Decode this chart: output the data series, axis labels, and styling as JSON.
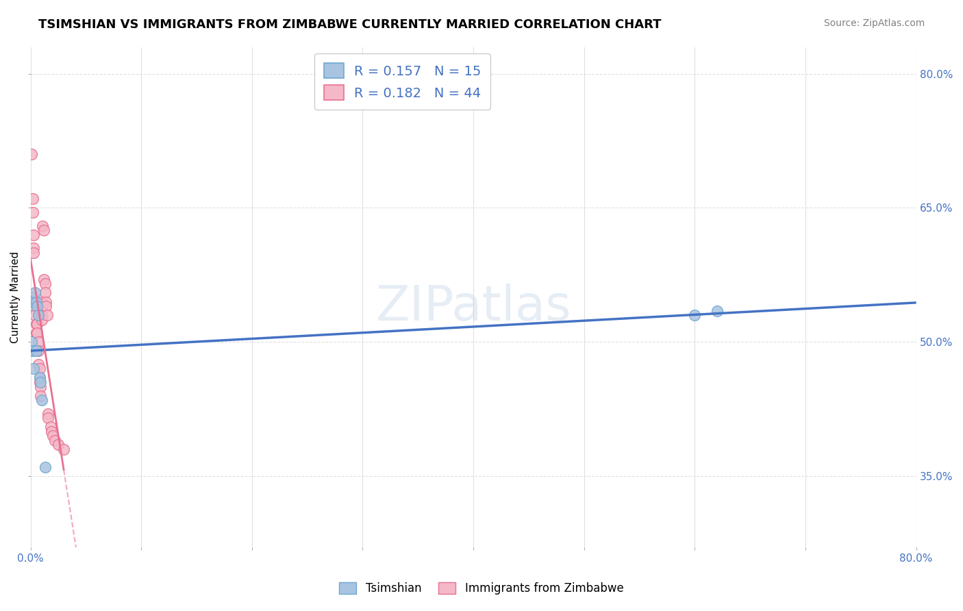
{
  "title": "TSIMSHIAN VS IMMIGRANTS FROM ZIMBABWE CURRENTLY MARRIED CORRELATION CHART",
  "source": "Source: ZipAtlas.com",
  "ylabel_label": "Currently Married",
  "xlim": [
    0.0,
    0.8
  ],
  "ylim": [
    0.27,
    0.83
  ],
  "watermark": "ZIPatlas",
  "tsimshian_x": [
    0.001,
    0.002,
    0.003,
    0.004,
    0.005,
    0.006,
    0.007,
    0.008,
    0.009,
    0.01,
    0.013,
    0.6,
    0.62,
    0.005,
    0.003
  ],
  "tsimshian_y": [
    0.5,
    0.49,
    0.545,
    0.555,
    0.545,
    0.54,
    0.53,
    0.46,
    0.455,
    0.435,
    0.36,
    0.53,
    0.535,
    0.49,
    0.47
  ],
  "zimbabwe_x": [
    0.001,
    0.001,
    0.002,
    0.002,
    0.002,
    0.003,
    0.003,
    0.003,
    0.003,
    0.004,
    0.004,
    0.004,
    0.005,
    0.005,
    0.006,
    0.006,
    0.007,
    0.007,
    0.007,
    0.008,
    0.008,
    0.008,
    0.009,
    0.009,
    0.01,
    0.01,
    0.01,
    0.01,
    0.011,
    0.012,
    0.012,
    0.013,
    0.013,
    0.014,
    0.014,
    0.015,
    0.016,
    0.016,
    0.018,
    0.019,
    0.02,
    0.022,
    0.025,
    0.03
  ],
  "zimbabwe_y": [
    0.71,
    0.49,
    0.66,
    0.645,
    0.55,
    0.62,
    0.605,
    0.6,
    0.545,
    0.545,
    0.54,
    0.53,
    0.52,
    0.51,
    0.52,
    0.51,
    0.5,
    0.49,
    0.475,
    0.47,
    0.46,
    0.455,
    0.45,
    0.44,
    0.545,
    0.54,
    0.53,
    0.525,
    0.63,
    0.625,
    0.57,
    0.565,
    0.555,
    0.545,
    0.54,
    0.53,
    0.42,
    0.415,
    0.405,
    0.4,
    0.395,
    0.39,
    0.385,
    0.38
  ],
  "tsimshian_color": "#a8c4e0",
  "tsimshian_edge": "#6fa8d0",
  "tsimshian_line_color": "#4472c4",
  "zimbabwe_color": "#f4b8c8",
  "zimbabwe_edge": "#e87090",
  "zimbabwe_line_color": "#e07090",
  "tsimshian_R": 0.157,
  "tsimshian_N": 15,
  "zimbabwe_R": 0.182,
  "zimbabwe_N": 44,
  "legend_text_color": "#4472c4",
  "background_color": "#ffffff",
  "grid_color": "#e0e0e0",
  "title_fontsize": 13,
  "axis_label_fontsize": 11,
  "tick_fontsize": 11,
  "source_fontsize": 10
}
